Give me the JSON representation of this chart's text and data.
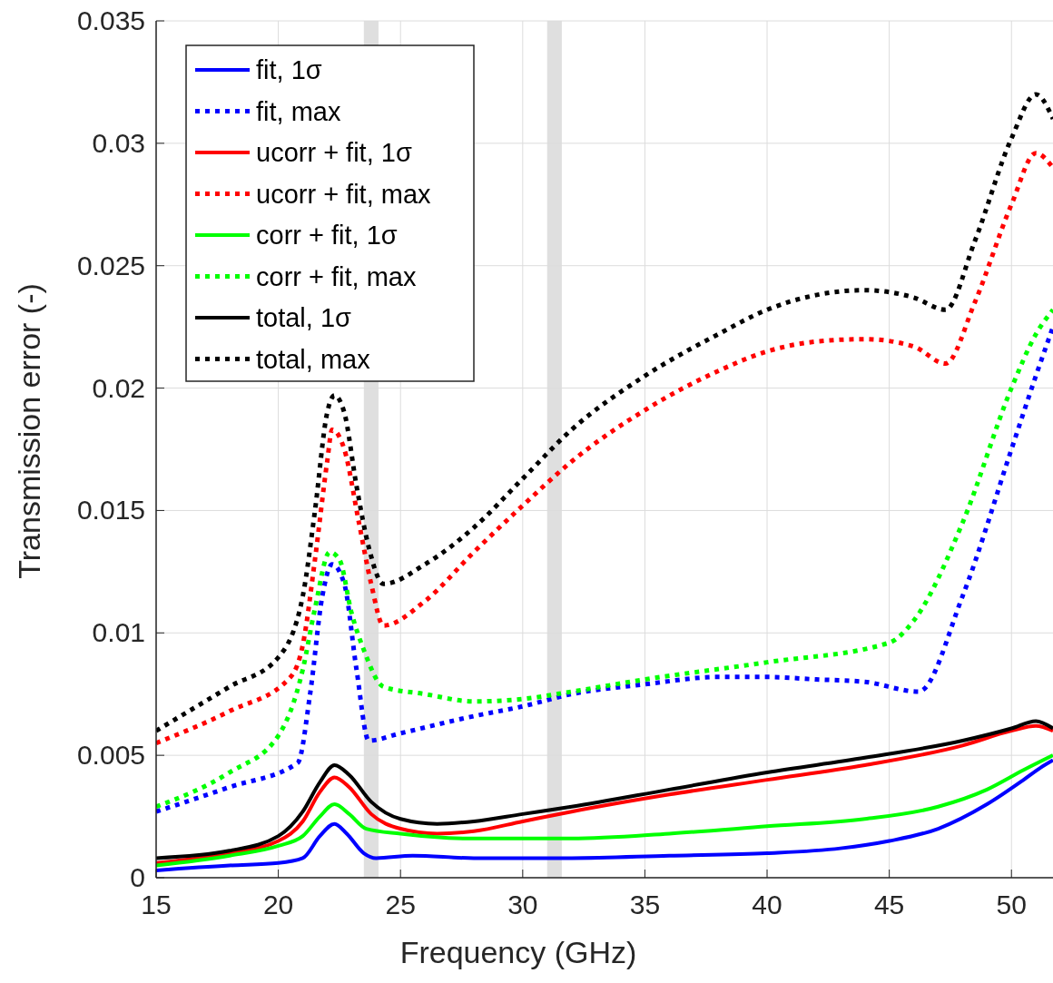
{
  "chart_data": {
    "type": "line",
    "xlabel": "Frequency (GHz)",
    "ylabel": "Transmission error (-)",
    "xlim": [
      15,
      51.7
    ],
    "ylim": [
      0,
      0.035
    ],
    "xticks": [
      15,
      20,
      25,
      30,
      35,
      40,
      45,
      50
    ],
    "yticks": [
      {
        "value": 0,
        "label": "0"
      },
      0.005,
      0.01,
      0.015,
      0.02,
      0.025,
      0.03,
      0.035
    ],
    "grid": true,
    "legend": "top left",
    "bands": [
      {
        "axis": "x",
        "from": 23.5,
        "to": 24.1,
        "color": "#d9d9d9"
      },
      {
        "axis": "x",
        "from": 31.0,
        "to": 31.6,
        "color": "#d9d9d9"
      }
    ],
    "series": [
      {
        "name": "fit, 1σ",
        "color": "#0000ff",
        "line_style": "solid",
        "x": [
          15,
          18,
          20,
          21,
          21.7,
          22.3,
          22.8,
          23.5,
          24,
          25.5,
          28,
          32,
          36,
          40,
          43,
          45,
          47,
          49,
          50.5,
          51.2,
          51.7
        ],
        "values": [
          0.0003,
          0.0005,
          0.0006,
          0.0008,
          0.0017,
          0.0022,
          0.0018,
          0.001,
          0.0008,
          0.0009,
          0.0008,
          0.0008,
          0.0009,
          0.001,
          0.0012,
          0.0015,
          0.002,
          0.003,
          0.004,
          0.0045,
          0.0048
        ]
      },
      {
        "name": "fit, max",
        "color": "#0000ff",
        "line_style": "dotted",
        "x": [
          15,
          18,
          20.8,
          21.3,
          21.8,
          22.2,
          22.7,
          23.2,
          23.7,
          25,
          28,
          30,
          32,
          35,
          38,
          40,
          42,
          44,
          46.2,
          48,
          50,
          51,
          51.7
        ],
        "values": [
          0.0027,
          0.0037,
          0.0047,
          0.0075,
          0.0115,
          0.0128,
          0.012,
          0.0085,
          0.0056,
          0.0059,
          0.0066,
          0.007,
          0.0075,
          0.0079,
          0.0082,
          0.0082,
          0.0081,
          0.008,
          0.0076,
          0.0115,
          0.0175,
          0.0205,
          0.0225
        ]
      },
      {
        "name": "ucorr + fit, 1σ",
        "color": "#ff0000",
        "line_style": "solid",
        "x": [
          15,
          18,
          20,
          21,
          21.7,
          22.3,
          22.9,
          23.8,
          25,
          26.5,
          28,
          30,
          32,
          36,
          40,
          44,
          48,
          50,
          51,
          51.7
        ],
        "values": [
          0.0006,
          0.001,
          0.0015,
          0.0023,
          0.0035,
          0.0041,
          0.0037,
          0.0026,
          0.002,
          0.0018,
          0.0019,
          0.0023,
          0.0027,
          0.0034,
          0.004,
          0.0046,
          0.0054,
          0.006,
          0.0062,
          0.006
        ]
      },
      {
        "name": "ucorr + fit, max",
        "color": "#ff0000",
        "line_style": "dotted",
        "x": [
          15,
          18,
          20.5,
          21,
          21.5,
          22,
          22.2,
          22.7,
          23.3,
          23.8,
          24.3,
          26,
          28,
          30,
          32,
          35,
          38,
          40,
          42,
          44,
          46,
          47.3,
          48.5,
          50,
          51,
          51.7
        ],
        "values": [
          0.0055,
          0.0068,
          0.0082,
          0.0095,
          0.013,
          0.017,
          0.0183,
          0.0175,
          0.0145,
          0.012,
          0.0103,
          0.0113,
          0.0133,
          0.0152,
          0.017,
          0.0191,
          0.0207,
          0.0215,
          0.0219,
          0.022,
          0.0217,
          0.021,
          0.0235,
          0.0275,
          0.0296,
          0.029
        ]
      },
      {
        "name": "corr + fit, 1σ",
        "color": "#00ff00",
        "line_style": "solid",
        "x": [
          15,
          18,
          20,
          21,
          21.7,
          22.3,
          22.9,
          23.6,
          25,
          28,
          32,
          36,
          40,
          44,
          47,
          49,
          50.5,
          51.7
        ],
        "values": [
          0.0005,
          0.0009,
          0.0013,
          0.0017,
          0.0025,
          0.003,
          0.0026,
          0.002,
          0.0018,
          0.0016,
          0.0016,
          0.0018,
          0.0021,
          0.0024,
          0.0029,
          0.0036,
          0.0044,
          0.005
        ]
      },
      {
        "name": "corr + fit, max",
        "color": "#00ff00",
        "line_style": "dotted",
        "x": [
          15,
          18,
          20,
          21,
          21.5,
          22.1,
          22.5,
          23,
          23.5,
          24.3,
          26,
          28,
          30,
          32,
          35,
          40,
          45,
          46,
          48,
          50,
          51,
          51.7
        ],
        "values": [
          0.0029,
          0.0043,
          0.0058,
          0.0085,
          0.011,
          0.0133,
          0.013,
          0.0108,
          0.0093,
          0.0078,
          0.0075,
          0.0072,
          0.0073,
          0.0076,
          0.0081,
          0.0088,
          0.0096,
          0.0105,
          0.0145,
          0.02,
          0.0222,
          0.0232
        ]
      },
      {
        "name": "total, 1σ",
        "color": "#000000",
        "line_style": "solid",
        "x": [
          15,
          18,
          20,
          21,
          21.7,
          22.3,
          22.9,
          23.8,
          25,
          26.5,
          28,
          30,
          32,
          36,
          40,
          44,
          48,
          50,
          51,
          51.7
        ],
        "values": [
          0.0008,
          0.0011,
          0.0017,
          0.0027,
          0.0039,
          0.0046,
          0.0042,
          0.0031,
          0.0024,
          0.0022,
          0.0023,
          0.0026,
          0.0029,
          0.0036,
          0.0043,
          0.0049,
          0.0056,
          0.0061,
          0.0064,
          0.0061
        ]
      },
      {
        "name": "total, max",
        "color": "#000000",
        "line_style": "dotted",
        "x": [
          15,
          18,
          20,
          21,
          21.5,
          22,
          22.3,
          22.7,
          23.2,
          23.7,
          24.3,
          26,
          28,
          30,
          32,
          35,
          38,
          40,
          42,
          44,
          46,
          47.3,
          48.5,
          50,
          51,
          51.7
        ],
        "values": [
          0.006,
          0.0078,
          0.009,
          0.0115,
          0.015,
          0.019,
          0.0197,
          0.019,
          0.016,
          0.0135,
          0.012,
          0.0128,
          0.0143,
          0.0163,
          0.0183,
          0.0205,
          0.0222,
          0.0232,
          0.0238,
          0.024,
          0.0237,
          0.0232,
          0.026,
          0.0302,
          0.032,
          0.031
        ]
      }
    ]
  }
}
